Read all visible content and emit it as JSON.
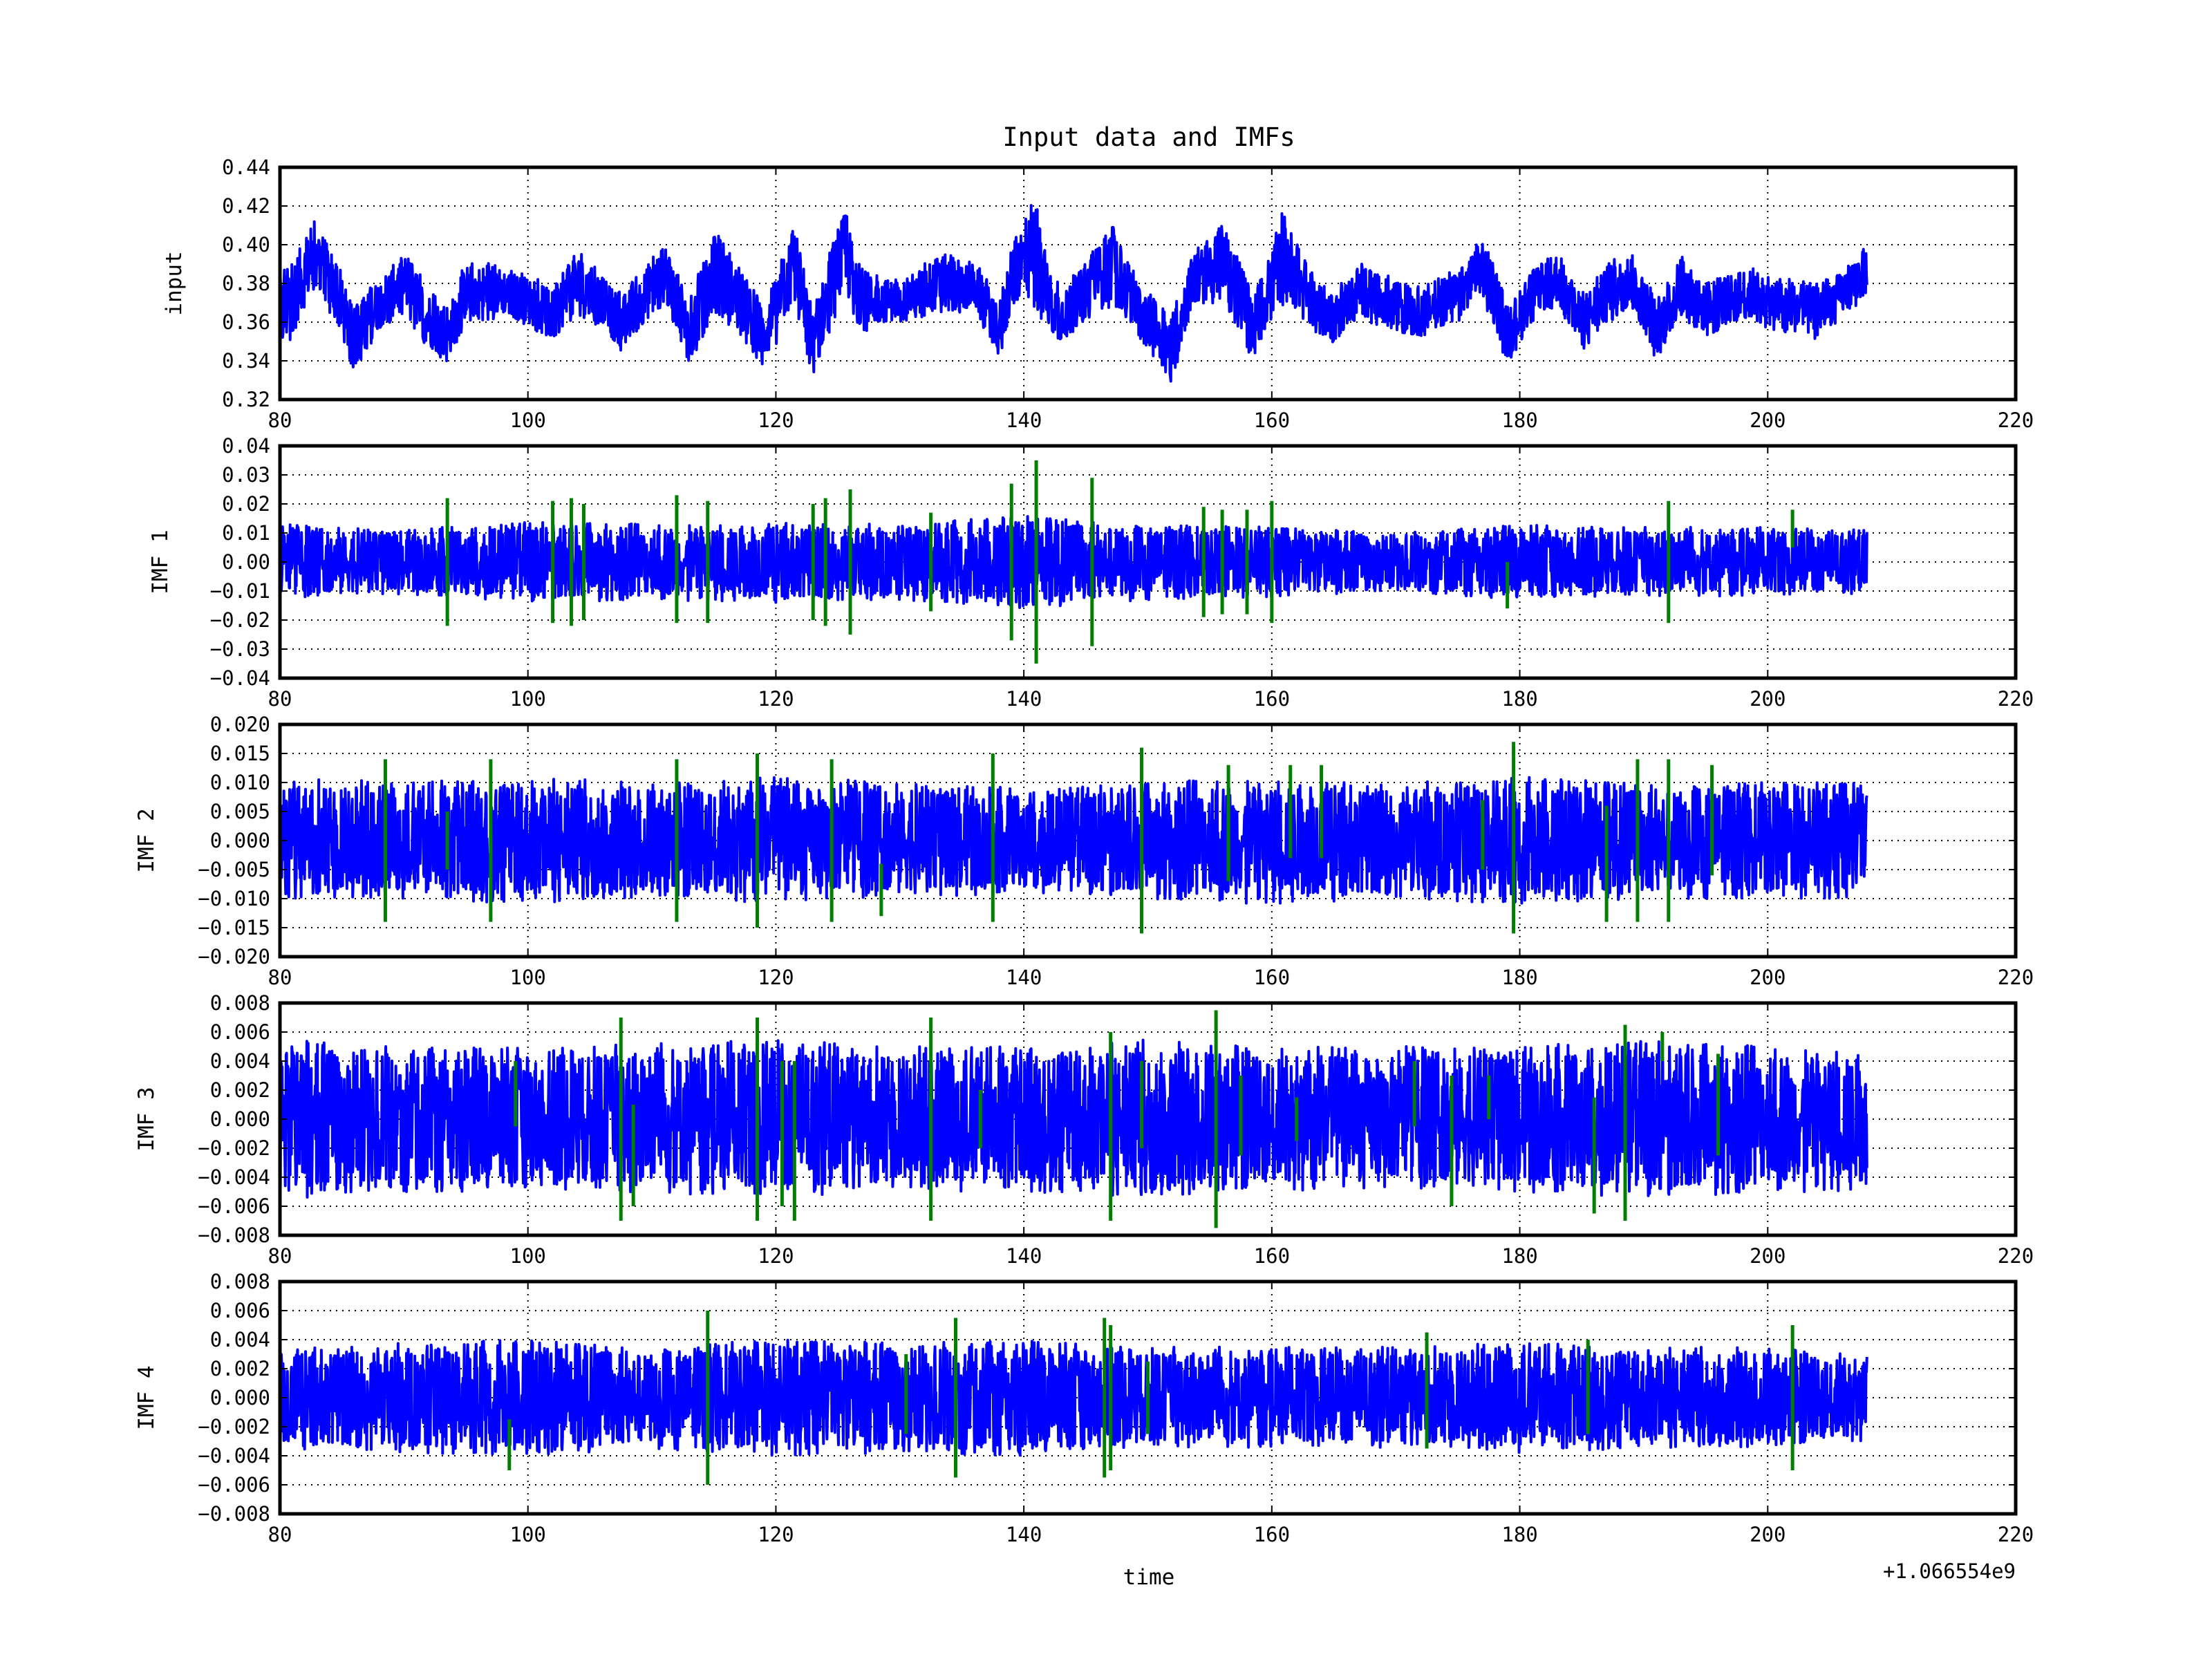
{
  "chart_data": {
    "type": "line",
    "title": "Input data and IMFs",
    "xlabel": "time",
    "x_offset_label": "+1.066554e9",
    "x_offset": 1066554000,
    "xlim": [
      80,
      220
    ],
    "x_ticks": [
      "80",
      "100",
      "120",
      "140",
      "160",
      "180",
      "200",
      "220"
    ],
    "x_data_range": [
      80,
      208
    ],
    "grid": true,
    "line_colors": {
      "signal": "#0000ff",
      "events": "#007f00"
    },
    "panels": [
      {
        "ylabel": "input",
        "ylim": [
          0.32,
          0.44
        ],
        "y_ticks": [
          "0.32",
          "0.34",
          "0.36",
          "0.38",
          "0.40",
          "0.42",
          "0.44"
        ],
        "envelope": [
          [
            80,
            0.338,
            0.386
          ],
          [
            82,
            0.365,
            0.405
          ],
          [
            83,
            0.38,
            0.415
          ],
          [
            85,
            0.348,
            0.385
          ],
          [
            86,
            0.335,
            0.368
          ],
          [
            88,
            0.355,
            0.385
          ],
          [
            90,
            0.365,
            0.397
          ],
          [
            92,
            0.345,
            0.378
          ],
          [
            93.5,
            0.338,
            0.368
          ],
          [
            95,
            0.36,
            0.392
          ],
          [
            98,
            0.362,
            0.39
          ],
          [
            100,
            0.357,
            0.385
          ],
          [
            102,
            0.352,
            0.378
          ],
          [
            104,
            0.36,
            0.398
          ],
          [
            106,
            0.358,
            0.385
          ],
          [
            107.5,
            0.345,
            0.375
          ],
          [
            109,
            0.355,
            0.385
          ],
          [
            111,
            0.368,
            0.402
          ],
          [
            113,
            0.338,
            0.372
          ],
          [
            115,
            0.362,
            0.408
          ],
          [
            117,
            0.355,
            0.39
          ],
          [
            119,
            0.336,
            0.368
          ],
          [
            120,
            0.348,
            0.385
          ],
          [
            121.5,
            0.368,
            0.41
          ],
          [
            123,
            0.33,
            0.365
          ],
          [
            124,
            0.35,
            0.39
          ],
          [
            125.5,
            0.372,
            0.42
          ],
          [
            127,
            0.355,
            0.388
          ],
          [
            130,
            0.36,
            0.382
          ],
          [
            133,
            0.364,
            0.396
          ],
          [
            136,
            0.365,
            0.392
          ],
          [
            138,
            0.342,
            0.372
          ],
          [
            139.5,
            0.37,
            0.41
          ],
          [
            141,
            0.365,
            0.425
          ],
          [
            142,
            0.357,
            0.39
          ],
          [
            143,
            0.348,
            0.378
          ],
          [
            145,
            0.36,
            0.392
          ],
          [
            147,
            0.368,
            0.412
          ],
          [
            149,
            0.355,
            0.385
          ],
          [
            150.5,
            0.34,
            0.372
          ],
          [
            152,
            0.328,
            0.365
          ],
          [
            153.5,
            0.365,
            0.395
          ],
          [
            156,
            0.372,
            0.412
          ],
          [
            158.5,
            0.34,
            0.375
          ],
          [
            160,
            0.36,
            0.4
          ],
          [
            161,
            0.37,
            0.42
          ],
          [
            163,
            0.357,
            0.388
          ],
          [
            165,
            0.348,
            0.375
          ],
          [
            167,
            0.362,
            0.392
          ],
          [
            169,
            0.357,
            0.385
          ],
          [
            172,
            0.352,
            0.378
          ],
          [
            175,
            0.36,
            0.388
          ],
          [
            177,
            0.372,
            0.405
          ],
          [
            179,
            0.338,
            0.37
          ],
          [
            181,
            0.36,
            0.388
          ],
          [
            183,
            0.368,
            0.398
          ],
          [
            185,
            0.345,
            0.375
          ],
          [
            187,
            0.358,
            0.39
          ],
          [
            189,
            0.368,
            0.398
          ],
          [
            191,
            0.34,
            0.372
          ],
          [
            193,
            0.362,
            0.395
          ],
          [
            195,
            0.352,
            0.38
          ],
          [
            198,
            0.36,
            0.39
          ],
          [
            201,
            0.355,
            0.383
          ],
          [
            204,
            0.35,
            0.38
          ],
          [
            206,
            0.362,
            0.388
          ],
          [
            208,
            0.372,
            0.402
          ]
        ],
        "events": []
      },
      {
        "ylabel": "IMF 1",
        "ylim": [
          -0.04,
          0.04
        ],
        "y_ticks": [
          "−0.04",
          "−0.03",
          "−0.02",
          "−0.01",
          "0.00",
          "0.01",
          "0.02",
          "0.03",
          "0.04"
        ],
        "envelope": [
          [
            80,
            -0.013,
            0.013
          ],
          [
            90,
            -0.011,
            0.011
          ],
          [
            100,
            -0.014,
            0.014
          ],
          [
            110,
            -0.013,
            0.013
          ],
          [
            120,
            -0.014,
            0.014
          ],
          [
            130,
            -0.013,
            0.013
          ],
          [
            140,
            -0.016,
            0.016
          ],
          [
            150,
            -0.013,
            0.013
          ],
          [
            160,
            -0.012,
            0.012
          ],
          [
            170,
            -0.01,
            0.01
          ],
          [
            180,
            -0.013,
            0.013
          ],
          [
            190,
            -0.012,
            0.012
          ],
          [
            200,
            -0.012,
            0.012
          ],
          [
            208,
            -0.011,
            0.011
          ]
        ],
        "events": [
          [
            93.5,
            -0.022,
            0.022
          ],
          [
            102,
            -0.021,
            0.021
          ],
          [
            103.5,
            -0.022,
            0.022
          ],
          [
            104.5,
            -0.02,
            0.02
          ],
          [
            112,
            -0.021,
            0.023
          ],
          [
            114.5,
            -0.021,
            0.021
          ],
          [
            123,
            -0.02,
            0.02
          ],
          [
            124,
            -0.022,
            0.022
          ],
          [
            126,
            -0.025,
            0.025
          ],
          [
            132.5,
            -0.017,
            0.017
          ],
          [
            139,
            -0.027,
            0.027
          ],
          [
            141,
            -0.035,
            0.035
          ],
          [
            145.5,
            -0.029,
            0.029
          ],
          [
            154.5,
            -0.019,
            0.019
          ],
          [
            156,
            -0.018,
            0.018
          ],
          [
            158,
            -0.018,
            0.018
          ],
          [
            160,
            -0.021,
            0.021
          ],
          [
            179,
            -0.016,
            0.0
          ],
          [
            192,
            -0.021,
            0.021
          ],
          [
            202,
            0.005,
            0.018
          ]
        ]
      },
      {
        "ylabel": "IMF 2",
        "ylim": [
          -0.02,
          0.02
        ],
        "y_ticks": [
          "−0.020",
          "−0.015",
          "−0.010",
          "−0.005",
          "0.000",
          "0.005",
          "0.010",
          "0.015",
          "0.020"
        ],
        "envelope": [
          [
            80,
            -0.011,
            0.011
          ],
          [
            90,
            -0.01,
            0.01
          ],
          [
            100,
            -0.011,
            0.011
          ],
          [
            110,
            -0.01,
            0.01
          ],
          [
            120,
            -0.011,
            0.011
          ],
          [
            130,
            -0.01,
            0.01
          ],
          [
            140,
            -0.009,
            0.009
          ],
          [
            150,
            -0.01,
            0.01
          ],
          [
            160,
            -0.011,
            0.011
          ],
          [
            170,
            -0.01,
            0.01
          ],
          [
            180,
            -0.011,
            0.011
          ],
          [
            190,
            -0.01,
            0.01
          ],
          [
            200,
            -0.01,
            0.01
          ],
          [
            208,
            -0.01,
            0.01
          ]
        ],
        "events": [
          [
            88.5,
            -0.014,
            0.014
          ],
          [
            93.5,
            -0.005,
            0.005
          ],
          [
            97,
            -0.014,
            0.014
          ],
          [
            112,
            -0.014,
            0.014
          ],
          [
            118.5,
            -0.015,
            0.015
          ],
          [
            124.5,
            -0.014,
            0.014
          ],
          [
            128.5,
            -0.013,
            -0.004
          ],
          [
            137.5,
            -0.014,
            0.015
          ],
          [
            149.5,
            -0.016,
            0.016
          ],
          [
            156.5,
            -0.007,
            0.013
          ],
          [
            161.5,
            -0.003,
            0.013
          ],
          [
            164,
            -0.003,
            0.013
          ],
          [
            177,
            -0.005,
            0.007
          ],
          [
            179.5,
            -0.016,
            0.017
          ],
          [
            187,
            -0.014,
            0.006
          ],
          [
            189.5,
            -0.014,
            0.014
          ],
          [
            192,
            -0.014,
            0.014
          ],
          [
            195.5,
            -0.006,
            0.013
          ]
        ]
      },
      {
        "ylabel": "IMF 3",
        "ylim": [
          -0.008,
          0.008
        ],
        "y_ticks": [
          "−0.008",
          "−0.006",
          "−0.004",
          "−0.002",
          "0.000",
          "0.002",
          "0.004",
          "0.006",
          "0.008"
        ],
        "envelope": [
          [
            80,
            -0.0055,
            0.0055
          ],
          [
            90,
            -0.005,
            0.005
          ],
          [
            100,
            -0.005,
            0.005
          ],
          [
            110,
            -0.0052,
            0.0052
          ],
          [
            120,
            -0.0055,
            0.0055
          ],
          [
            130,
            -0.005,
            0.005
          ],
          [
            140,
            -0.005,
            0.005
          ],
          [
            150,
            -0.0055,
            0.0055
          ],
          [
            160,
            -0.005,
            0.005
          ],
          [
            170,
            -0.005,
            0.005
          ],
          [
            180,
            -0.005,
            0.005
          ],
          [
            190,
            -0.0055,
            0.0055
          ],
          [
            200,
            -0.005,
            0.005
          ],
          [
            208,
            -0.005,
            0.005
          ]
        ],
        "events": [
          [
            99,
            -0.0005,
            0.004
          ],
          [
            107.5,
            -0.007,
            0.007
          ],
          [
            108.5,
            -0.006,
            0.001
          ],
          [
            118.5,
            -0.007,
            0.007
          ],
          [
            120.5,
            -0.006,
            0.004
          ],
          [
            121.5,
            -0.007,
            0.004
          ],
          [
            132.5,
            -0.007,
            0.007
          ],
          [
            136.5,
            -0.002,
            0.002
          ],
          [
            147,
            -0.007,
            0.006
          ],
          [
            149.5,
            -0.002,
            0.004
          ],
          [
            155.5,
            -0.0075,
            0.0075
          ],
          [
            157.5,
            -0.0025,
            0.003
          ],
          [
            162,
            -0.0015,
            0.0015
          ],
          [
            171.5,
            -0.0005,
            0.004
          ],
          [
            174.5,
            -0.006,
            0.003
          ],
          [
            177.5,
            0.0,
            0.003
          ],
          [
            186,
            -0.0065,
            0.0015
          ],
          [
            188.5,
            -0.007,
            0.0065
          ],
          [
            191.5,
            0.004,
            0.006
          ],
          [
            196,
            -0.0025,
            0.0045
          ]
        ]
      },
      {
        "ylabel": "IMF 4",
        "ylim": [
          -0.008,
          0.008
        ],
        "y_ticks": [
          "−0.008",
          "−0.006",
          "−0.004",
          "−0.002",
          "0.000",
          "0.002",
          "0.004",
          "0.006",
          "0.008"
        ],
        "envelope": [
          [
            80,
            -0.0035,
            0.0035
          ],
          [
            90,
            -0.0038,
            0.0038
          ],
          [
            100,
            -0.004,
            0.004
          ],
          [
            110,
            -0.0035,
            0.0035
          ],
          [
            120,
            -0.004,
            0.004
          ],
          [
            130,
            -0.0038,
            0.0038
          ],
          [
            140,
            -0.004,
            0.004
          ],
          [
            150,
            -0.0035,
            0.0035
          ],
          [
            160,
            -0.0035,
            0.0035
          ],
          [
            170,
            -0.0035,
            0.0035
          ],
          [
            180,
            -0.0038,
            0.0038
          ],
          [
            190,
            -0.0035,
            0.0035
          ],
          [
            200,
            -0.0035,
            0.0035
          ],
          [
            208,
            -0.003,
            0.003
          ]
        ],
        "events": [
          [
            98.5,
            -0.005,
            -0.0015
          ],
          [
            114.5,
            -0.006,
            0.006
          ],
          [
            130.5,
            -0.0025,
            0.003
          ],
          [
            134.5,
            -0.0055,
            0.0055
          ],
          [
            146.5,
            -0.0055,
            0.0055
          ],
          [
            147,
            -0.005,
            0.005
          ],
          [
            150,
            -0.0025,
            0.0025
          ],
          [
            172.5,
            -0.0035,
            0.0045
          ],
          [
            185.5,
            -0.0025,
            0.004
          ],
          [
            202,
            -0.005,
            0.005
          ]
        ]
      }
    ]
  }
}
